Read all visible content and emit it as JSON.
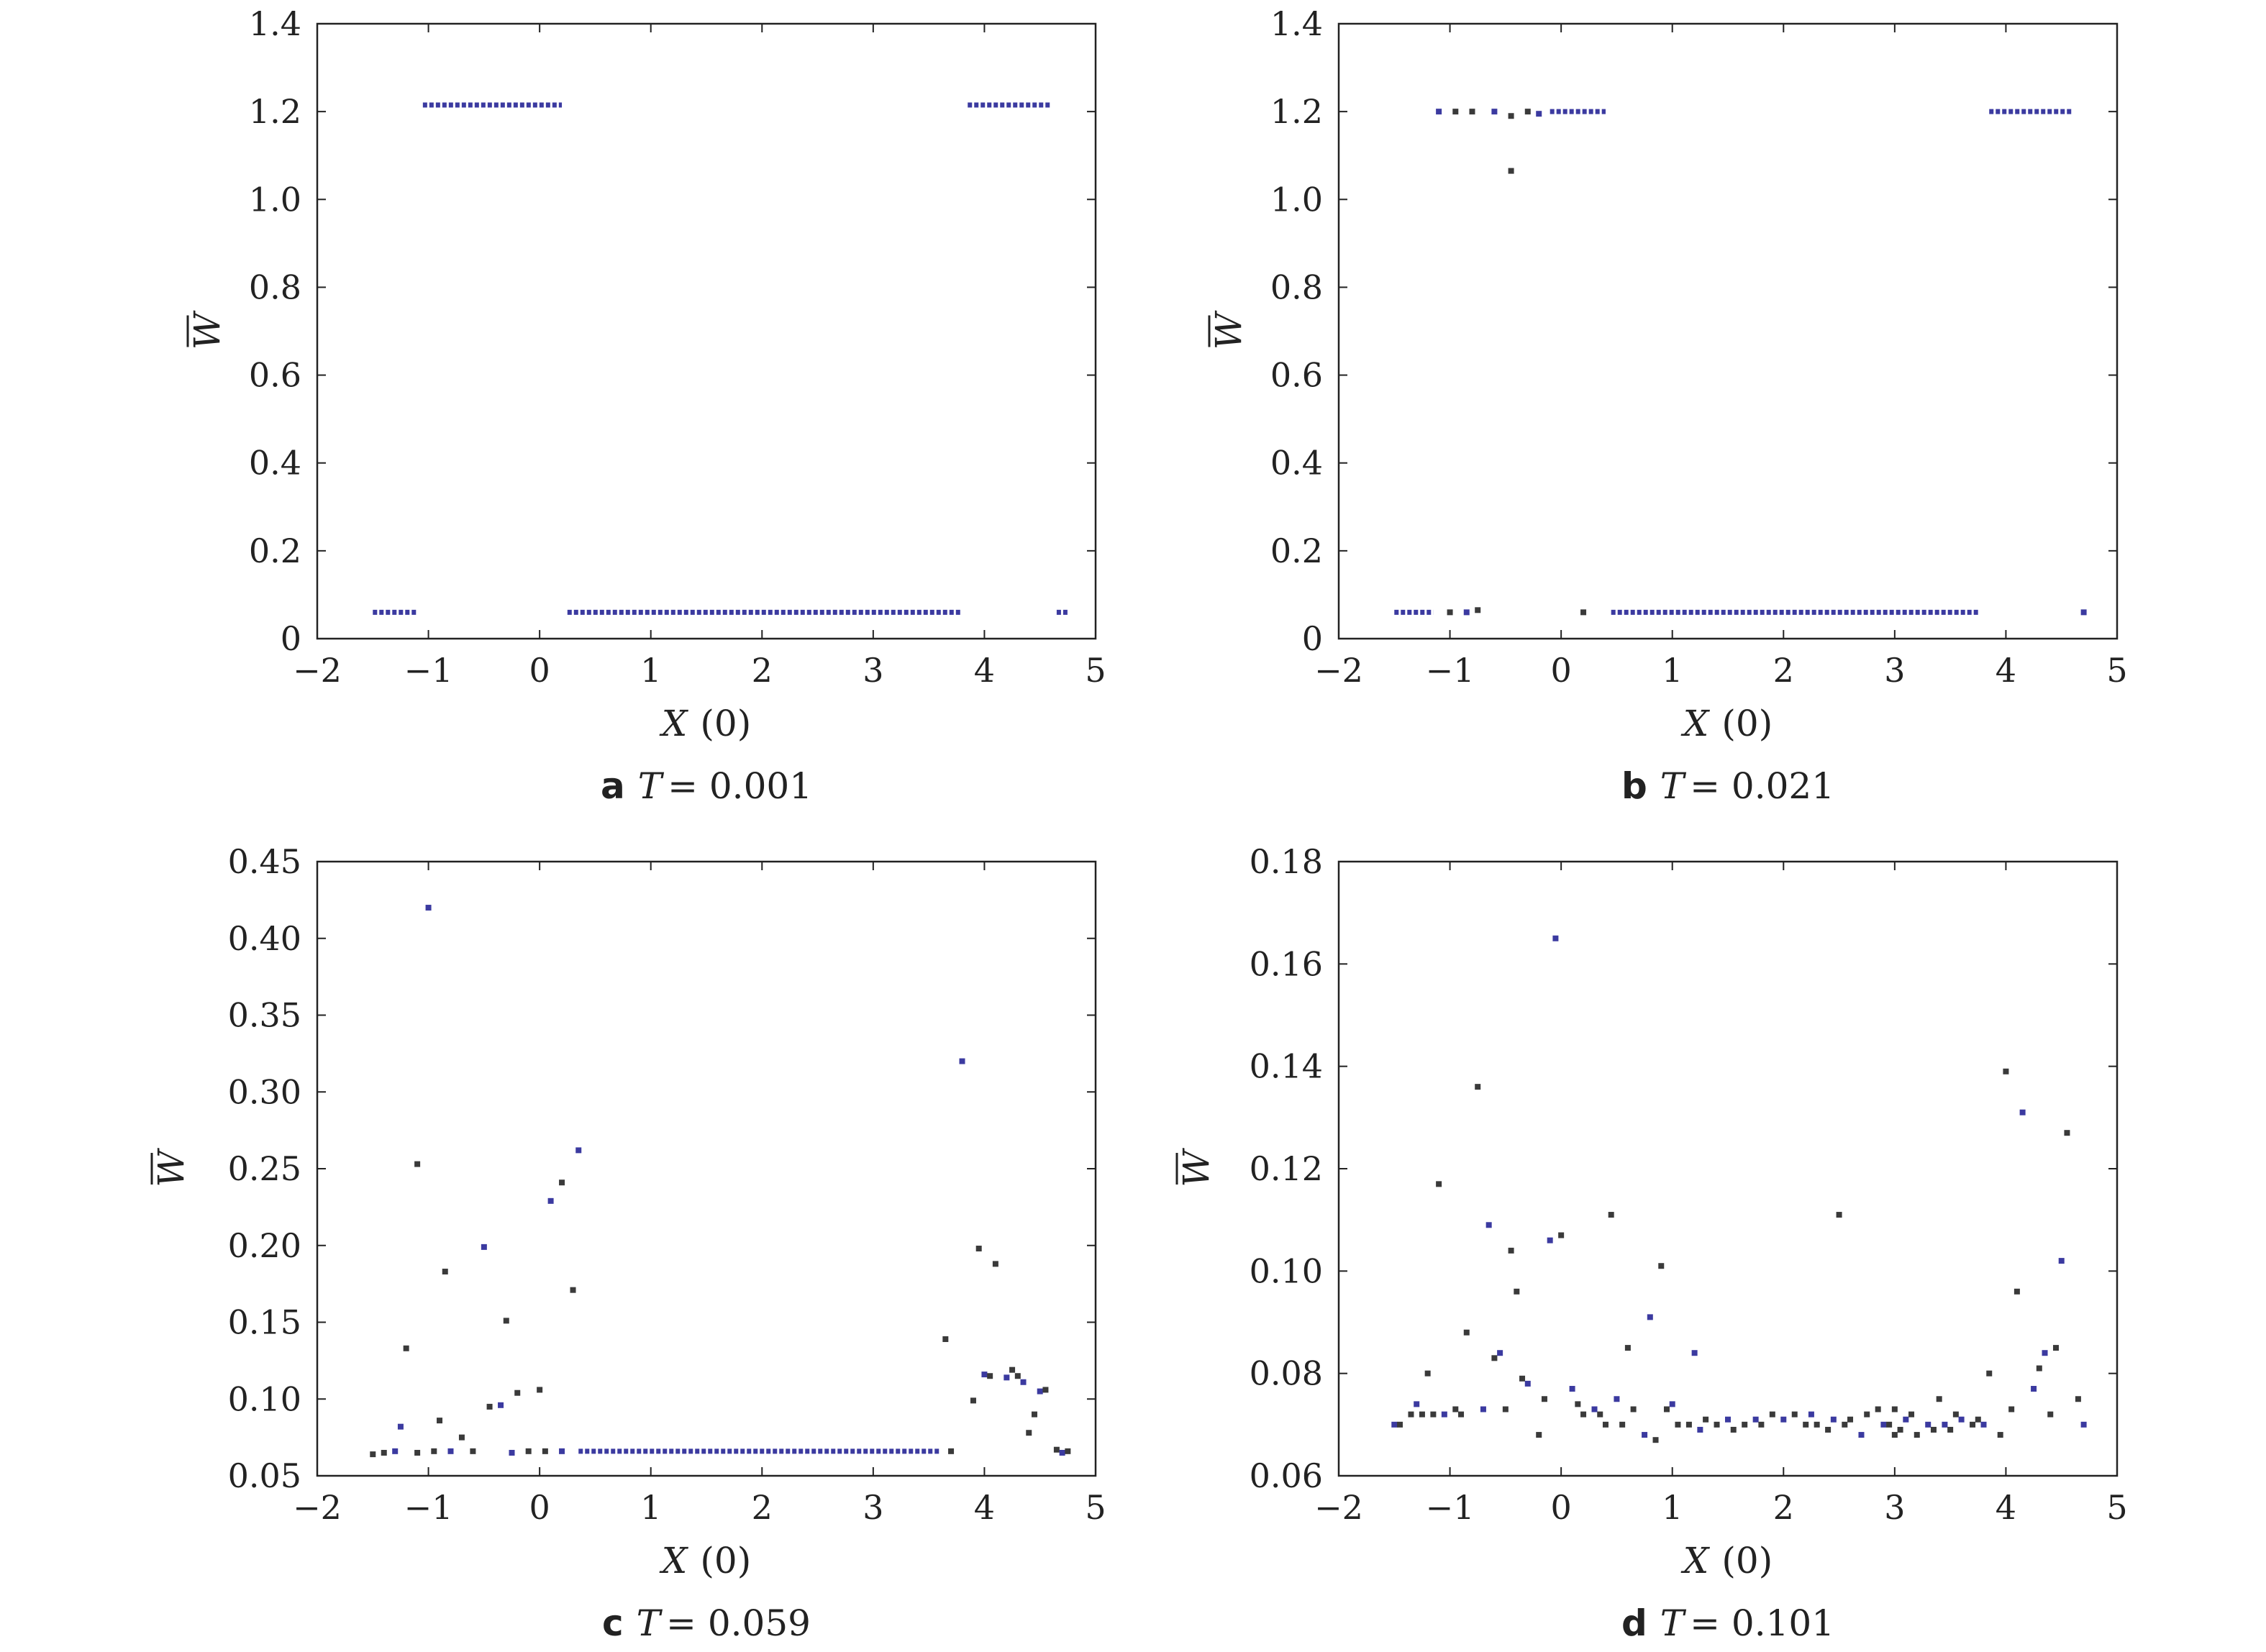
{
  "colors": {
    "point_blue": "#3b3aa0",
    "point_dark": "#3a3a3a",
    "frame": "#222222"
  },
  "chart_data": [
    {
      "type": "scatter",
      "caption_letter": "a",
      "caption_param": "T",
      "caption_value": "= 0.001",
      "xlabel_var": "X",
      "xlabel_arg": "(0)",
      "ylabel": "W",
      "xlim": [
        -2,
        5
      ],
      "ylim": [
        0,
        1.4
      ],
      "xticks": [
        -2,
        -1,
        0,
        1,
        2,
        3,
        4,
        5
      ],
      "xtick_labels": [
        "−2",
        "−1",
        "0",
        "1",
        "2",
        "3",
        "4",
        "5"
      ],
      "yticks": [
        0,
        0.2,
        0.4,
        0.6,
        0.8,
        1.0,
        1.2,
        1.4
      ],
      "ytick_labels": [
        "0",
        "0.2",
        "0.4",
        "0.6",
        "0.8",
        "1.0",
        "1.2",
        "1.4"
      ],
      "segments": [
        {
          "x1": -1.5,
          "x2": -1.1,
          "y": 0.06
        },
        {
          "x1": -1.05,
          "x2": 0.2,
          "y": 1.215
        },
        {
          "x1": 0.25,
          "x2": 3.8,
          "y": 0.06
        },
        {
          "x1": 3.85,
          "x2": 4.6,
          "y": 1.215
        },
        {
          "x1": 4.65,
          "x2": 4.75,
          "y": 0.06
        }
      ],
      "points": []
    },
    {
      "type": "scatter",
      "caption_letter": "b",
      "caption_param": "T",
      "caption_value": "= 0.021",
      "xlabel_var": "X",
      "xlabel_arg": "(0)",
      "ylabel": "W",
      "xlim": [
        -2,
        5
      ],
      "ylim": [
        0,
        1.4
      ],
      "xticks": [
        -2,
        -1,
        0,
        1,
        2,
        3,
        4,
        5
      ],
      "xtick_labels": [
        "−2",
        "−1",
        "0",
        "1",
        "2",
        "3",
        "4",
        "5"
      ],
      "yticks": [
        0,
        0.2,
        0.4,
        0.6,
        0.8,
        1.0,
        1.2,
        1.4
      ],
      "ytick_labels": [
        "0",
        "0.2",
        "0.4",
        "0.6",
        "0.8",
        "1.0",
        "1.2",
        "1.4"
      ],
      "segments": [
        {
          "x1": -1.5,
          "x2": -1.15,
          "y": 0.06
        },
        {
          "x1": -0.1,
          "x2": 0.4,
          "y": 1.2
        },
        {
          "x1": 0.45,
          "x2": 3.75,
          "y": 0.06
        },
        {
          "x1": 3.85,
          "x2": 4.6,
          "y": 1.2
        }
      ],
      "points": [
        [
          -1.1,
          1.2
        ],
        [
          -0.95,
          1.2
        ],
        [
          -0.8,
          1.2
        ],
        [
          -0.6,
          1.2
        ],
        [
          -0.45,
          1.19
        ],
        [
          -0.3,
          1.2
        ],
        [
          -0.2,
          1.195
        ],
        [
          -0.45,
          1.065
        ],
        [
          -1.0,
          0.06
        ],
        [
          -0.85,
          0.06
        ],
        [
          -0.75,
          0.065
        ],
        [
          0.2,
          0.06
        ],
        [
          4.7,
          0.06
        ]
      ]
    },
    {
      "type": "scatter",
      "caption_letter": "c",
      "caption_param": "T",
      "caption_value": "= 0.059",
      "xlabel_var": "X",
      "xlabel_arg": "(0)",
      "ylabel": "W",
      "xlim": [
        -2,
        5
      ],
      "ylim": [
        0.05,
        0.45
      ],
      "xticks": [
        -2,
        -1,
        0,
        1,
        2,
        3,
        4,
        5
      ],
      "xtick_labels": [
        "−2",
        "−1",
        "0",
        "1",
        "2",
        "3",
        "4",
        "5"
      ],
      "yticks": [
        0.05,
        0.1,
        0.15,
        0.2,
        0.25,
        0.3,
        0.35,
        0.4,
        0.45
      ],
      "ytick_labels": [
        "0.05",
        "0.10",
        "0.15",
        "0.20",
        "0.25",
        "0.30",
        "0.35",
        "0.40",
        "0.45"
      ],
      "segments": [
        {
          "x1": 0.35,
          "x2": 3.6,
          "y": 0.066
        }
      ],
      "points": [
        [
          -1.0,
          0.42
        ],
        [
          -1.1,
          0.253
        ],
        [
          -1.2,
          0.133
        ],
        [
          -1.25,
          0.082
        ],
        [
          -0.85,
          0.183
        ],
        [
          -0.9,
          0.086
        ],
        [
          -0.5,
          0.199
        ],
        [
          -0.45,
          0.095
        ],
        [
          -0.3,
          0.151
        ],
        [
          -0.35,
          0.096
        ],
        [
          -0.2,
          0.104
        ],
        [
          0.0,
          0.106
        ],
        [
          0.1,
          0.229
        ],
        [
          0.2,
          0.241
        ],
        [
          0.3,
          0.171
        ],
        [
          0.35,
          0.262
        ],
        [
          -1.5,
          0.064
        ],
        [
          -1.4,
          0.065
        ],
        [
          -1.3,
          0.066
        ],
        [
          -1.1,
          0.065
        ],
        [
          -0.95,
          0.066
        ],
        [
          -0.8,
          0.066
        ],
        [
          -0.7,
          0.075
        ],
        [
          -0.6,
          0.066
        ],
        [
          -0.25,
          0.065
        ],
        [
          -0.1,
          0.066
        ],
        [
          0.05,
          0.066
        ],
        [
          0.2,
          0.066
        ],
        [
          3.65,
          0.139
        ],
        [
          3.7,
          0.066
        ],
        [
          3.8,
          0.32
        ],
        [
          3.9,
          0.099
        ],
        [
          3.95,
          0.198
        ],
        [
          4.0,
          0.116
        ],
        [
          4.05,
          0.115
        ],
        [
          4.1,
          0.188
        ],
        [
          4.2,
          0.114
        ],
        [
          4.25,
          0.119
        ],
        [
          4.3,
          0.115
        ],
        [
          4.35,
          0.111
        ],
        [
          4.4,
          0.078
        ],
        [
          4.45,
          0.09
        ],
        [
          4.5,
          0.105
        ],
        [
          4.55,
          0.106
        ],
        [
          4.65,
          0.067
        ],
        [
          4.7,
          0.065
        ],
        [
          4.75,
          0.066
        ]
      ]
    },
    {
      "type": "scatter",
      "caption_letter": "d",
      "caption_param": "T",
      "caption_value": "= 0.101",
      "xlabel_var": "X",
      "xlabel_arg": "(0)",
      "ylabel": "W",
      "xlim": [
        -2,
        5
      ],
      "ylim": [
        0.06,
        0.18
      ],
      "xticks": [
        -2,
        -1,
        0,
        1,
        2,
        3,
        4,
        5
      ],
      "xtick_labels": [
        "−2",
        "−1",
        "0",
        "1",
        "2",
        "3",
        "4",
        "5"
      ],
      "yticks": [
        0.06,
        0.08,
        0.1,
        0.12,
        0.14,
        0.16,
        0.18
      ],
      "ytick_labels": [
        "0.06",
        "0.08",
        "0.10",
        "0.12",
        "0.14",
        "0.16",
        "0.18"
      ],
      "segments": [],
      "points": [
        [
          -0.05,
          0.165
        ],
        [
          -0.75,
          0.136
        ],
        [
          -1.1,
          0.117
        ],
        [
          -0.65,
          0.109
        ],
        [
          -0.45,
          0.104
        ],
        [
          -0.4,
          0.096
        ],
        [
          -0.1,
          0.106
        ],
        [
          0.0,
          0.107
        ],
        [
          0.45,
          0.111
        ],
        [
          0.8,
          0.091
        ],
        [
          0.9,
          0.101
        ],
        [
          0.6,
          0.085
        ],
        [
          1.2,
          0.084
        ],
        [
          2.5,
          0.111
        ],
        [
          4.0,
          0.139
        ],
        [
          4.15,
          0.131
        ],
        [
          4.1,
          0.096
        ],
        [
          4.55,
          0.127
        ],
        [
          4.5,
          0.102
        ],
        [
          -0.85,
          0.088
        ],
        [
          -0.6,
          0.083
        ],
        [
          -0.55,
          0.084
        ],
        [
          -1.2,
          0.08
        ],
        [
          3.85,
          0.08
        ],
        [
          4.35,
          0.084
        ],
        [
          4.45,
          0.085
        ],
        [
          4.3,
          0.081
        ],
        [
          4.25,
          0.077
        ],
        [
          4.05,
          0.073
        ],
        [
          4.65,
          0.075
        ],
        [
          -1.5,
          0.07
        ],
        [
          -1.45,
          0.07
        ],
        [
          -1.35,
          0.072
        ],
        [
          -1.3,
          0.074
        ],
        [
          -1.25,
          0.072
        ],
        [
          -1.15,
          0.072
        ],
        [
          -1.05,
          0.072
        ],
        [
          -0.95,
          0.073
        ],
        [
          -0.9,
          0.072
        ],
        [
          -0.7,
          0.073
        ],
        [
          -0.5,
          0.073
        ],
        [
          -0.35,
          0.079
        ],
        [
          -0.3,
          0.078
        ],
        [
          -0.2,
          0.068
        ],
        [
          -0.15,
          0.075
        ],
        [
          0.1,
          0.077
        ],
        [
          0.15,
          0.074
        ],
        [
          0.2,
          0.072
        ],
        [
          0.3,
          0.073
        ],
        [
          0.35,
          0.072
        ],
        [
          0.4,
          0.07
        ],
        [
          0.5,
          0.075
        ],
        [
          0.55,
          0.07
        ],
        [
          0.65,
          0.073
        ],
        [
          0.75,
          0.068
        ],
        [
          0.85,
          0.067
        ],
        [
          0.95,
          0.073
        ],
        [
          1.0,
          0.074
        ],
        [
          1.05,
          0.07
        ],
        [
          1.15,
          0.07
        ],
        [
          1.25,
          0.069
        ],
        [
          1.3,
          0.071
        ],
        [
          1.4,
          0.07
        ],
        [
          1.5,
          0.071
        ],
        [
          1.55,
          0.069
        ],
        [
          1.65,
          0.07
        ],
        [
          1.75,
          0.071
        ],
        [
          1.8,
          0.07
        ],
        [
          1.9,
          0.072
        ],
        [
          2.0,
          0.071
        ],
        [
          2.1,
          0.072
        ],
        [
          2.2,
          0.07
        ],
        [
          2.25,
          0.072
        ],
        [
          2.3,
          0.07
        ],
        [
          2.4,
          0.069
        ],
        [
          2.45,
          0.071
        ],
        [
          2.55,
          0.07
        ],
        [
          2.6,
          0.071
        ],
        [
          2.7,
          0.068
        ],
        [
          2.75,
          0.072
        ],
        [
          2.85,
          0.073
        ],
        [
          2.9,
          0.07
        ],
        [
          3.0,
          0.073
        ],
        [
          3.05,
          0.069
        ],
        [
          3.1,
          0.071
        ],
        [
          3.15,
          0.072
        ],
        [
          3.2,
          0.068
        ],
        [
          3.3,
          0.07
        ],
        [
          3.35,
          0.069
        ],
        [
          3.4,
          0.075
        ],
        [
          3.45,
          0.07
        ],
        [
          3.5,
          0.069
        ],
        [
          3.55,
          0.072
        ],
        [
          3.6,
          0.071
        ],
        [
          3.7,
          0.07
        ],
        [
          3.75,
          0.071
        ],
        [
          3.8,
          0.07
        ],
        [
          3.95,
          0.068
        ],
        [
          4.4,
          0.072
        ],
        [
          4.7,
          0.07
        ],
        [
          3.0,
          0.068
        ],
        [
          2.95,
          0.07
        ]
      ]
    }
  ]
}
